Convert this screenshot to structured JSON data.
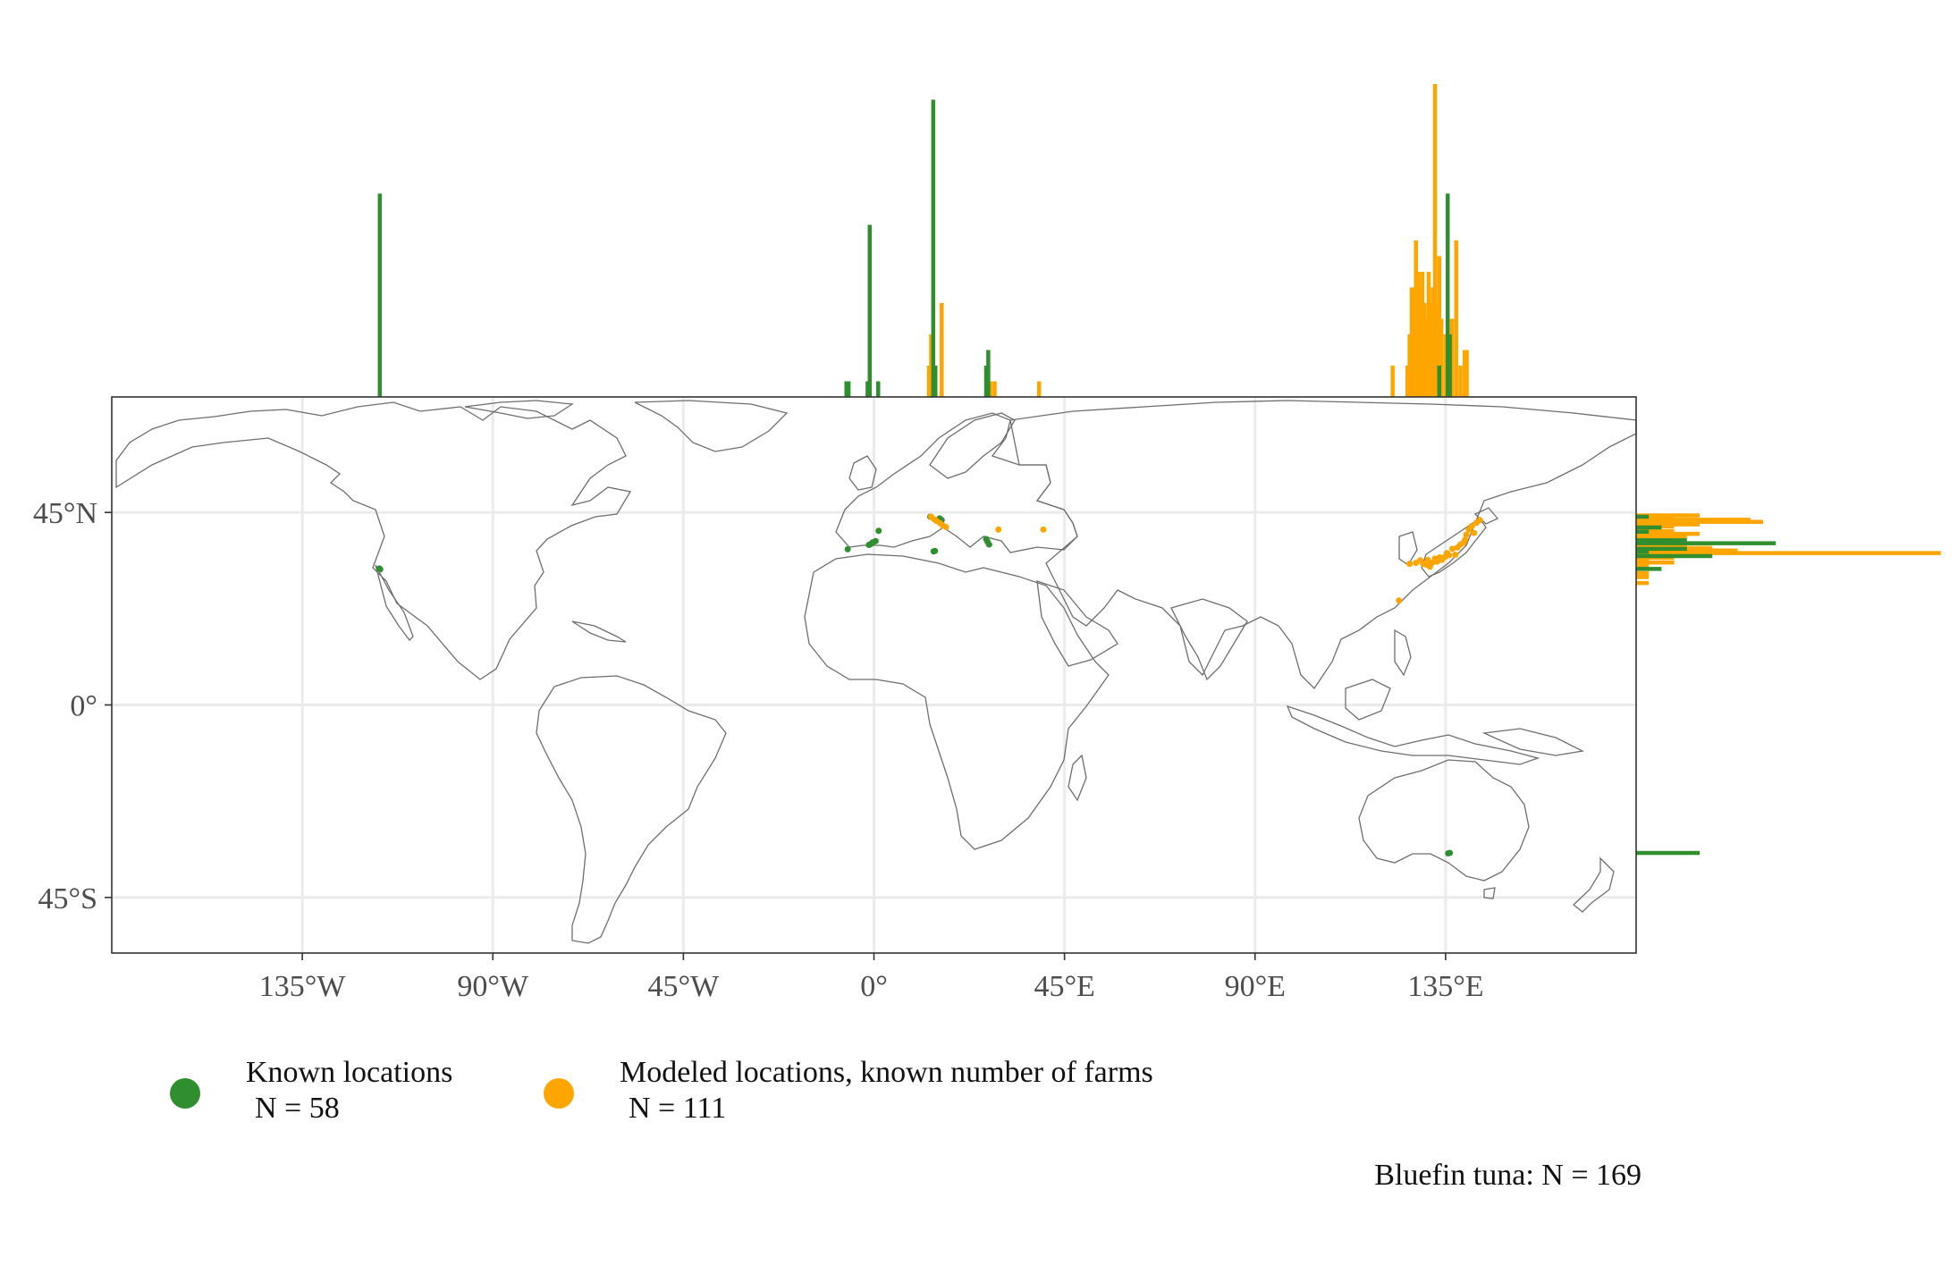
{
  "chart_data": {
    "type": "scatter",
    "map": "world, equirectangular",
    "x_axis": {
      "quantity": "longitude",
      "ticks": [
        -135,
        -90,
        -45,
        0,
        45,
        90,
        135
      ],
      "tick_labels": [
        "135°W",
        "90°W",
        "45°W",
        "0°",
        "45°E",
        "90°E",
        "135°E"
      ],
      "range": [
        -180,
        180
      ]
    },
    "y_axis": {
      "quantity": "latitude",
      "ticks": [
        45,
        0,
        -45
      ],
      "tick_labels": [
        "45°N",
        "0°",
        "45°S"
      ],
      "range": [
        -58,
        72
      ]
    },
    "grid": true,
    "legend_position": "bottom-left",
    "series": [
      {
        "name": "Known locations",
        "count_label": "N = 58",
        "color": "#2f8f2f",
        "points": [
          [
            -116.8,
            31.9
          ],
          [
            -116.6,
            31.7
          ],
          [
            -6.2,
            36.4
          ],
          [
            -1.2,
            37.4
          ],
          [
            -0.8,
            37.6
          ],
          [
            -0.3,
            38.0
          ],
          [
            0.4,
            38.3
          ],
          [
            1.1,
            40.7
          ],
          [
            14.1,
            35.9
          ],
          [
            14.4,
            36.0
          ],
          [
            13.3,
            44.0
          ],
          [
            15.5,
            43.6
          ],
          [
            16.0,
            43.2
          ],
          [
            26.5,
            38.8
          ],
          [
            27.2,
            37.5
          ],
          [
            26.8,
            38.2
          ],
          [
            135.6,
            -34.7
          ],
          [
            136.0,
            -34.6
          ]
        ],
        "lon_hist": [
          {
            "lon": -116.7,
            "count": 13
          },
          {
            "lon": -6.5,
            "count": 1
          },
          {
            "lon": -6.0,
            "count": 1
          },
          {
            "lon": -1.5,
            "count": 1
          },
          {
            "lon": -1.0,
            "count": 11
          },
          {
            "lon": 1.0,
            "count": 1
          },
          {
            "lon": 14.0,
            "count": 19
          },
          {
            "lon": 14.5,
            "count": 2
          },
          {
            "lon": 26.5,
            "count": 2
          },
          {
            "lon": 27.0,
            "count": 3
          },
          {
            "lon": 135.5,
            "count": 13
          },
          {
            "lon": 136.0,
            "count": 4
          },
          {
            "lon": 133.5,
            "count": 2
          }
        ],
        "lat_hist": [
          {
            "lat": 44.0,
            "count": 1
          },
          {
            "lat": 41.5,
            "count": 2
          },
          {
            "lat": 40.5,
            "count": 1
          },
          {
            "lat": 38.5,
            "count": 4
          },
          {
            "lat": 37.8,
            "count": 11
          },
          {
            "lat": 36.5,
            "count": 4
          },
          {
            "lat": 35.8,
            "count": 1
          },
          {
            "lat": 34.8,
            "count": 6
          },
          {
            "lat": 31.8,
            "count": 2
          },
          {
            "lat": -34.6,
            "count": 5
          }
        ]
      },
      {
        "name": "Modeled locations, known number of farms",
        "count_label": "N = 111",
        "color": "#ffa500",
        "points": [
          [
            13.5,
            44.0
          ],
          [
            14.2,
            43.4
          ],
          [
            14.8,
            43.0
          ],
          [
            15.6,
            42.5
          ],
          [
            16.3,
            41.9
          ],
          [
            17.0,
            41.6
          ],
          [
            29.4,
            41.0
          ],
          [
            40.0,
            41.0
          ],
          [
            124.0,
            24.4
          ],
          [
            126.5,
            33.0
          ],
          [
            128.0,
            33.2
          ],
          [
            129.0,
            33.8
          ],
          [
            129.7,
            33.0
          ],
          [
            130.4,
            32.8
          ],
          [
            130.8,
            33.9
          ],
          [
            131.3,
            32.3
          ],
          [
            131.8,
            33.2
          ],
          [
            132.5,
            34.2
          ],
          [
            133.0,
            33.5
          ],
          [
            133.6,
            34.5
          ],
          [
            134.1,
            33.9
          ],
          [
            134.8,
            34.6
          ],
          [
            135.3,
            35.5
          ],
          [
            135.8,
            35.0
          ],
          [
            136.6,
            36.5
          ],
          [
            137.3,
            35.1
          ],
          [
            137.8,
            36.8
          ],
          [
            138.5,
            37.5
          ],
          [
            139.2,
            37.9
          ],
          [
            139.6,
            38.6
          ],
          [
            139.9,
            39.8
          ],
          [
            140.5,
            41.0
          ],
          [
            141.2,
            41.8
          ],
          [
            141.7,
            40.2
          ],
          [
            142.3,
            42.6
          ],
          [
            143.1,
            43.2
          ]
        ],
        "lon_hist": [
          {
            "lon": 13.0,
            "count": 2
          },
          {
            "lon": 13.5,
            "count": 4
          },
          {
            "lon": 14.5,
            "count": 2
          },
          {
            "lon": 16.0,
            "count": 6
          },
          {
            "lon": 27.5,
            "count": 1
          },
          {
            "lon": 28.5,
            "count": 1
          },
          {
            "lon": 39.0,
            "count": 1
          },
          {
            "lon": 122.5,
            "count": 2
          },
          {
            "lon": 126.0,
            "count": 2
          },
          {
            "lon": 126.5,
            "count": 4
          },
          {
            "lon": 127.0,
            "count": 7
          },
          {
            "lon": 127.5,
            "count": 7
          },
          {
            "lon": 128.0,
            "count": 10
          },
          {
            "lon": 128.5,
            "count": 8
          },
          {
            "lon": 129.0,
            "count": 7
          },
          {
            "lon": 129.5,
            "count": 8
          },
          {
            "lon": 130.0,
            "count": 6
          },
          {
            "lon": 130.5,
            "count": 5
          },
          {
            "lon": 131.0,
            "count": 8
          },
          {
            "lon": 131.5,
            "count": 6
          },
          {
            "lon": 132.0,
            "count": 7
          },
          {
            "lon": 132.5,
            "count": 20
          },
          {
            "lon": 133.0,
            "count": 6
          },
          {
            "lon": 133.5,
            "count": 9
          },
          {
            "lon": 134.0,
            "count": 5
          },
          {
            "lon": 135.0,
            "count": 4
          },
          {
            "lon": 136.0,
            "count": 2
          },
          {
            "lon": 136.5,
            "count": 5
          },
          {
            "lon": 137.5,
            "count": 10
          },
          {
            "lon": 138.5,
            "count": 2
          },
          {
            "lon": 139.5,
            "count": 3
          },
          {
            "lon": 140.0,
            "count": 3
          }
        ],
        "lat_hist": [
          {
            "lat": 44.3,
            "count": 5
          },
          {
            "lat": 43.8,
            "count": 3
          },
          {
            "lat": 43.3,
            "count": 9
          },
          {
            "lat": 42.8,
            "count": 10
          },
          {
            "lat": 42.2,
            "count": 5
          },
          {
            "lat": 41.7,
            "count": 3
          },
          {
            "lat": 41.2,
            "count": 2
          },
          {
            "lat": 40.6,
            "count": 3
          },
          {
            "lat": 40.0,
            "count": 5
          },
          {
            "lat": 39.4,
            "count": 4
          },
          {
            "lat": 38.9,
            "count": 3
          },
          {
            "lat": 38.3,
            "count": 3
          },
          {
            "lat": 37.7,
            "count": 6
          },
          {
            "lat": 37.2,
            "count": 4
          },
          {
            "lat": 36.6,
            "count": 6
          },
          {
            "lat": 36.1,
            "count": 8
          },
          {
            "lat": 35.5,
            "count": 24
          },
          {
            "lat": 35.0,
            "count": 3
          },
          {
            "lat": 34.4,
            "count": 3
          },
          {
            "lat": 33.9,
            "count": 1
          },
          {
            "lat": 33.3,
            "count": 3
          },
          {
            "lat": 32.7,
            "count": 1
          },
          {
            "lat": 30.8,
            "count": 1
          },
          {
            "lat": 29.9,
            "count": 1
          },
          {
            "lat": 28.5,
            "count": 1
          }
        ]
      }
    ],
    "caption": "Bluefin tuna: N = 169"
  }
}
